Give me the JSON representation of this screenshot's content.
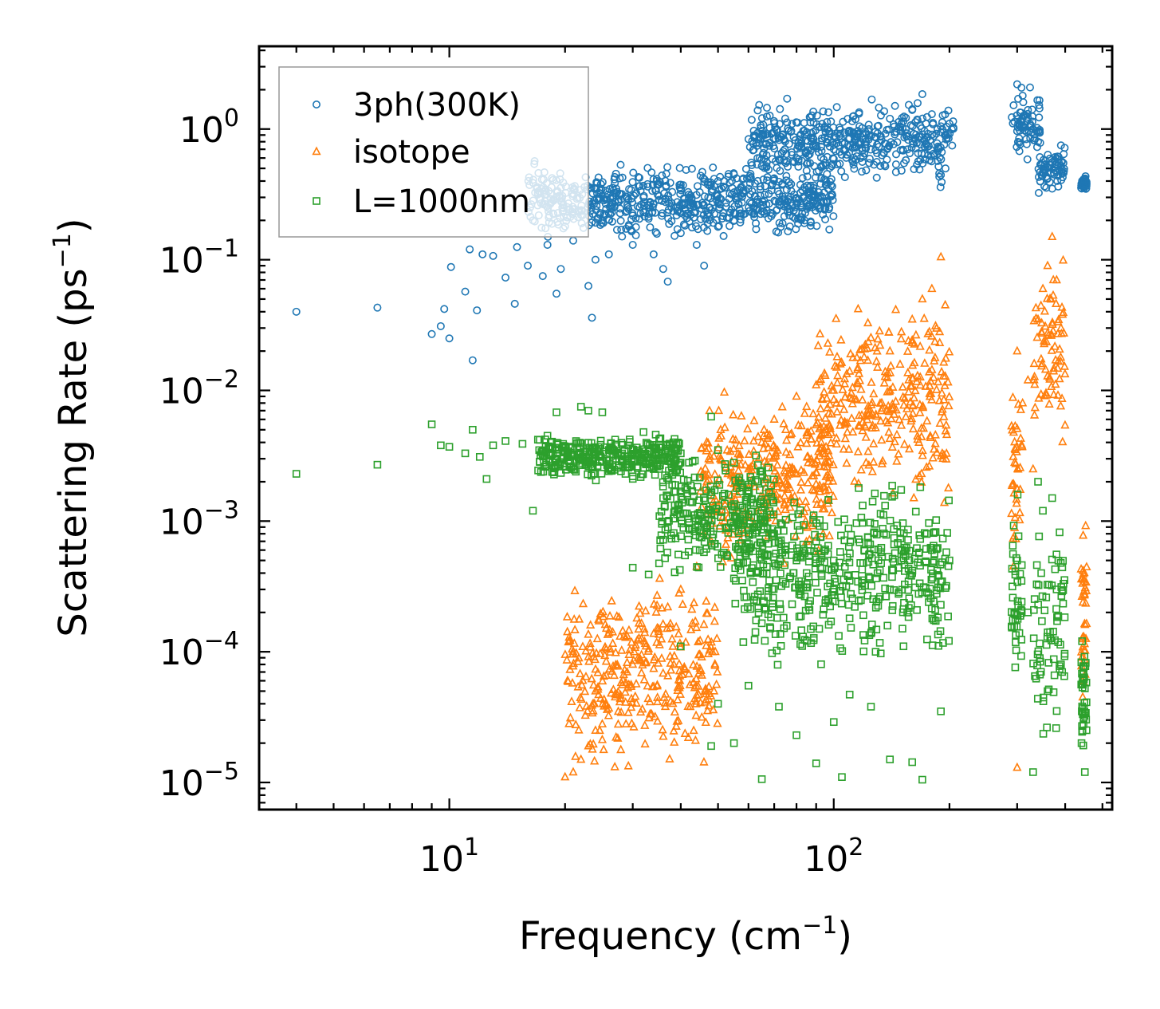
{
  "chart_data": {
    "type": "scatter",
    "title": "",
    "xlabel": "Frequency (cm",
    "xlabel_sup": "−1",
    "xlabel_close": ")",
    "ylabel": "Scattering Rate (ps",
    "ylabel_sup": "−1",
    "ylabel_close": ")",
    "xscale": "log",
    "yscale": "log",
    "xlim": [
      3.2,
      530
    ],
    "ylim": [
      6.2e-06,
      4.3
    ],
    "x_ticks": [
      {
        "value": 10,
        "base": "10",
        "exp": "1"
      },
      {
        "value": 100,
        "base": "10",
        "exp": "2"
      }
    ],
    "y_ticks": [
      {
        "value": 1,
        "base": "10",
        "exp": "0"
      },
      {
        "value": 0.1,
        "base": "10",
        "exp": "−1"
      },
      {
        "value": 0.01,
        "base": "10",
        "exp": "−2"
      },
      {
        "value": 0.001,
        "base": "10",
        "exp": "−3"
      },
      {
        "value": 0.0001,
        "base": "10",
        "exp": "−4"
      },
      {
        "value": 1e-05,
        "base": "10",
        "exp": "−5"
      }
    ],
    "legend_position": "top-left",
    "series": [
      {
        "name": "3ph(300K)",
        "marker": "circle",
        "color": "#1f77b4",
        "points": [
          [
            4,
            0.04
          ],
          [
            6.5,
            0.043
          ],
          [
            9,
            0.027
          ],
          [
            9.5,
            0.031
          ],
          [
            9.7,
            0.042
          ],
          [
            10,
            0.025
          ],
          [
            10.1,
            0.088
          ],
          [
            11,
            0.057
          ],
          [
            11.3,
            0.12
          ],
          [
            11.5,
            0.017
          ],
          [
            11.8,
            0.041
          ],
          [
            12.2,
            0.11
          ],
          [
            13,
            0.107
          ],
          [
            14,
            0.073
          ],
          [
            14.8,
            0.046
          ],
          [
            15,
            0.125
          ],
          [
            16,
            0.09
          ],
          [
            16.5,
            0.2
          ],
          [
            17.5,
            0.075
          ],
          [
            18,
            0.13
          ],
          [
            19,
            0.055
          ],
          [
            19.5,
            0.085
          ],
          [
            20,
            0.18
          ],
          [
            21,
            0.14
          ],
          [
            22,
            0.22
          ],
          [
            23,
            0.063
          ],
          [
            23.5,
            0.036
          ],
          [
            24,
            0.1
          ],
          [
            25,
            0.2
          ],
          [
            26,
            0.11
          ],
          [
            27,
            0.28
          ],
          [
            28,
            0.17
          ],
          [
            30,
            0.13
          ],
          [
            32,
            0.3
          ],
          [
            34,
            0.11
          ],
          [
            36,
            0.085
          ],
          [
            37,
            0.068
          ],
          [
            38,
            0.33
          ],
          [
            40,
            0.16
          ],
          [
            42,
            0.3
          ],
          [
            44,
            0.13
          ],
          [
            46,
            0.09
          ],
          [
            48,
            0.24
          ],
          [
            50,
            0.4
          ],
          [
            55,
            0.45
          ],
          [
            60,
            0.35
          ],
          [
            65,
            0.52
          ],
          [
            70,
            0.42
          ],
          [
            75,
            0.55
          ],
          [
            80,
            0.6
          ],
          [
            85,
            0.48
          ],
          [
            90,
            0.75
          ],
          [
            95,
            0.55
          ],
          [
            100,
            0.7
          ],
          [
            110,
            0.85
          ],
          [
            120,
            0.65
          ],
          [
            130,
            1.05
          ],
          [
            140,
            1.2
          ],
          [
            150,
            1.1
          ],
          [
            160,
            1.4
          ],
          [
            170,
            1.85
          ],
          [
            180,
            1.3
          ],
          [
            190,
            1.05
          ],
          [
            200,
            1.1
          ],
          [
            300,
            2.2
          ],
          [
            310,
            1.8
          ],
          [
            320,
            1.4
          ],
          [
            330,
            1.0
          ],
          [
            340,
            0.8
          ],
          [
            350,
            0.55
          ],
          [
            360,
            0.42
          ],
          [
            370,
            0.35
          ],
          [
            380,
            0.6
          ],
          [
            390,
            0.75
          ],
          [
            450,
            0.4
          ]
        ],
        "bands": [
          {
            "from": 16,
            "to": 100,
            "low": 0.13,
            "high": 0.6
          },
          {
            "from": 60,
            "to": 205,
            "low": 0.32,
            "high": 1.9
          },
          {
            "from": 290,
            "to": 345,
            "low": 0.5,
            "high": 2.3
          },
          {
            "from": 340,
            "to": 400,
            "low": 0.3,
            "high": 0.8
          },
          {
            "from": 440,
            "to": 455,
            "low": 0.33,
            "high": 0.45
          }
        ]
      },
      {
        "name": "isotope",
        "marker": "triangle",
        "color": "#ff7f0e",
        "points": [
          [
            20,
            1.1e-05
          ],
          [
            21,
            1.2e-05
          ],
          [
            22,
            1.5e-05
          ],
          [
            23,
            1.9e-05
          ],
          [
            24,
            2.5e-05
          ],
          [
            25,
            2.8e-05
          ],
          [
            26,
            3.7e-05
          ],
          [
            27,
            4.5e-05
          ],
          [
            28,
            5.8e-05
          ],
          [
            29,
            7e-05
          ],
          [
            30,
            8e-05
          ],
          [
            31,
            9e-05
          ],
          [
            33,
            0.000105
          ],
          [
            35,
            0.00015
          ],
          [
            37,
            0.00022
          ],
          [
            40,
            0.0003
          ],
          [
            44,
            0.00045
          ],
          [
            48,
            0.0007
          ],
          [
            52,
            0.001
          ],
          [
            55,
            0.0017
          ],
          [
            60,
            0.0025
          ],
          [
            65,
            0.004
          ],
          [
            70,
            0.006
          ],
          [
            75,
            0.005
          ],
          [
            80,
            0.009
          ],
          [
            85,
            0.0075
          ],
          [
            90,
            0.011
          ],
          [
            95,
            0.013
          ],
          [
            100,
            0.01
          ],
          [
            110,
            0.014
          ],
          [
            120,
            0.018
          ],
          [
            130,
            0.015
          ],
          [
            140,
            0.02
          ],
          [
            150,
            0.028
          ],
          [
            160,
            0.035
          ],
          [
            170,
            0.05
          ],
          [
            180,
            0.06
          ],
          [
            190,
            0.105
          ],
          [
            195,
            0.045
          ],
          [
            300,
            0.02
          ],
          [
            310,
            0.008
          ],
          [
            320,
            0.012
          ],
          [
            330,
            0.0025
          ],
          [
            340,
            0.035
          ],
          [
            350,
            0.06
          ],
          [
            360,
            0.09
          ],
          [
            370,
            0.15
          ],
          [
            380,
            0.07
          ],
          [
            390,
            0.03
          ],
          [
            24,
            5e-05
          ],
          [
            300,
            1.3e-05
          ]
        ],
        "bands": [
          {
            "from": 20,
            "to": 50,
            "low": 1e-05,
            "high": 0.0005
          },
          {
            "from": 45,
            "to": 100,
            "low": 0.0004,
            "high": 0.012
          },
          {
            "from": 90,
            "to": 200,
            "low": 0.001,
            "high": 0.06
          },
          {
            "from": 290,
            "to": 310,
            "low": 0.0002,
            "high": 0.025
          },
          {
            "from": 330,
            "to": 400,
            "low": 0.003,
            "high": 0.15
          },
          {
            "from": 440,
            "to": 455,
            "low": 1.3e-05,
            "high": 0.002
          }
        ]
      },
      {
        "name": "L=1000nm",
        "marker": "square",
        "color": "#2ca02c",
        "points": [
          [
            4,
            0.0023
          ],
          [
            6.5,
            0.0027
          ],
          [
            9,
            0.0055
          ],
          [
            9.5,
            0.0038
          ],
          [
            10,
            0.0037
          ],
          [
            11,
            0.0033
          ],
          [
            11.5,
            0.005
          ],
          [
            12,
            0.0031
          ],
          [
            12.5,
            0.0021
          ],
          [
            13,
            0.0038
          ],
          [
            14,
            0.0041
          ],
          [
            15.5,
            0.0039
          ],
          [
            16.5,
            0.0012
          ],
          [
            17,
            0.0042
          ],
          [
            18,
            0.0045
          ],
          [
            19,
            0.0068
          ],
          [
            20,
            0.0037
          ],
          [
            21,
            0.0025
          ],
          [
            22,
            0.0075
          ],
          [
            23,
            0.007
          ],
          [
            25,
            0.0068
          ],
          [
            27,
            0.0042
          ],
          [
            29,
            0.003
          ],
          [
            30,
            0.0022
          ],
          [
            32,
            0.0048
          ],
          [
            34,
            0.0025
          ],
          [
            36,
            0.0015
          ],
          [
            38,
            0.0019
          ],
          [
            40,
            0.0033
          ],
          [
            42,
            0.0028
          ],
          [
            45,
            0.0011
          ],
          [
            48,
            0.0063
          ],
          [
            50,
            0.0035
          ],
          [
            55,
            0.0028
          ],
          [
            60,
            0.0019
          ],
          [
            65,
            0.0012
          ],
          [
            70,
            0.0008
          ],
          [
            75,
            0.0006
          ],
          [
            80,
            0.0005
          ],
          [
            85,
            0.0004
          ],
          [
            90,
            0.0007
          ],
          [
            100,
            0.0005
          ],
          [
            110,
            0.00035
          ],
          [
            120,
            0.0006
          ],
          [
            130,
            0.0004
          ],
          [
            140,
            0.0003
          ],
          [
            150,
            0.0005
          ],
          [
            160,
            0.0004
          ],
          [
            180,
            0.0006
          ],
          [
            200,
            0.0005
          ],
          [
            30,
            0.00044
          ],
          [
            33,
            0.00039
          ],
          [
            40,
            0.00011
          ],
          [
            48,
            1.9e-05
          ],
          [
            50,
            4e-05
          ],
          [
            55,
            2e-05
          ],
          [
            60,
            5.5e-05
          ],
          [
            65,
            1.06e-05
          ],
          [
            72,
            3.8e-05
          ],
          [
            80,
            2.3e-05
          ],
          [
            90,
            1.4e-05
          ],
          [
            100,
            2.9e-05
          ],
          [
            105,
            1.1e-05
          ],
          [
            110,
            4.7e-05
          ],
          [
            125,
            3.8e-05
          ],
          [
            140,
            1.5e-05
          ],
          [
            160,
            1.43e-05
          ],
          [
            170,
            1.05e-05
          ],
          [
            190,
            3.5e-05
          ],
          [
            300,
            0.0005
          ],
          [
            320,
            0.0002
          ],
          [
            330,
            1.2e-05
          ],
          [
            340,
            0.002
          ],
          [
            350,
            0.0012
          ],
          [
            360,
            5e-05
          ],
          [
            370,
            0.0015
          ],
          [
            380,
            0.0003
          ],
          [
            390,
            8e-05
          ],
          [
            450,
            1.2e-05
          ]
        ],
        "bands": [
          {
            "from": 17,
            "to": 40,
            "low": 0.002,
            "high": 0.005
          },
          {
            "from": 35,
            "to": 70,
            "low": 0.0003,
            "high": 0.004
          },
          {
            "from": 55,
            "to": 200,
            "low": 6e-05,
            "high": 0.0025
          },
          {
            "from": 290,
            "to": 310,
            "low": 2.5e-05,
            "high": 0.002
          },
          {
            "from": 330,
            "to": 400,
            "low": 1.2e-05,
            "high": 0.002
          },
          {
            "from": 440,
            "to": 455,
            "low": 1.2e-05,
            "high": 0.0002
          }
        ]
      }
    ]
  }
}
